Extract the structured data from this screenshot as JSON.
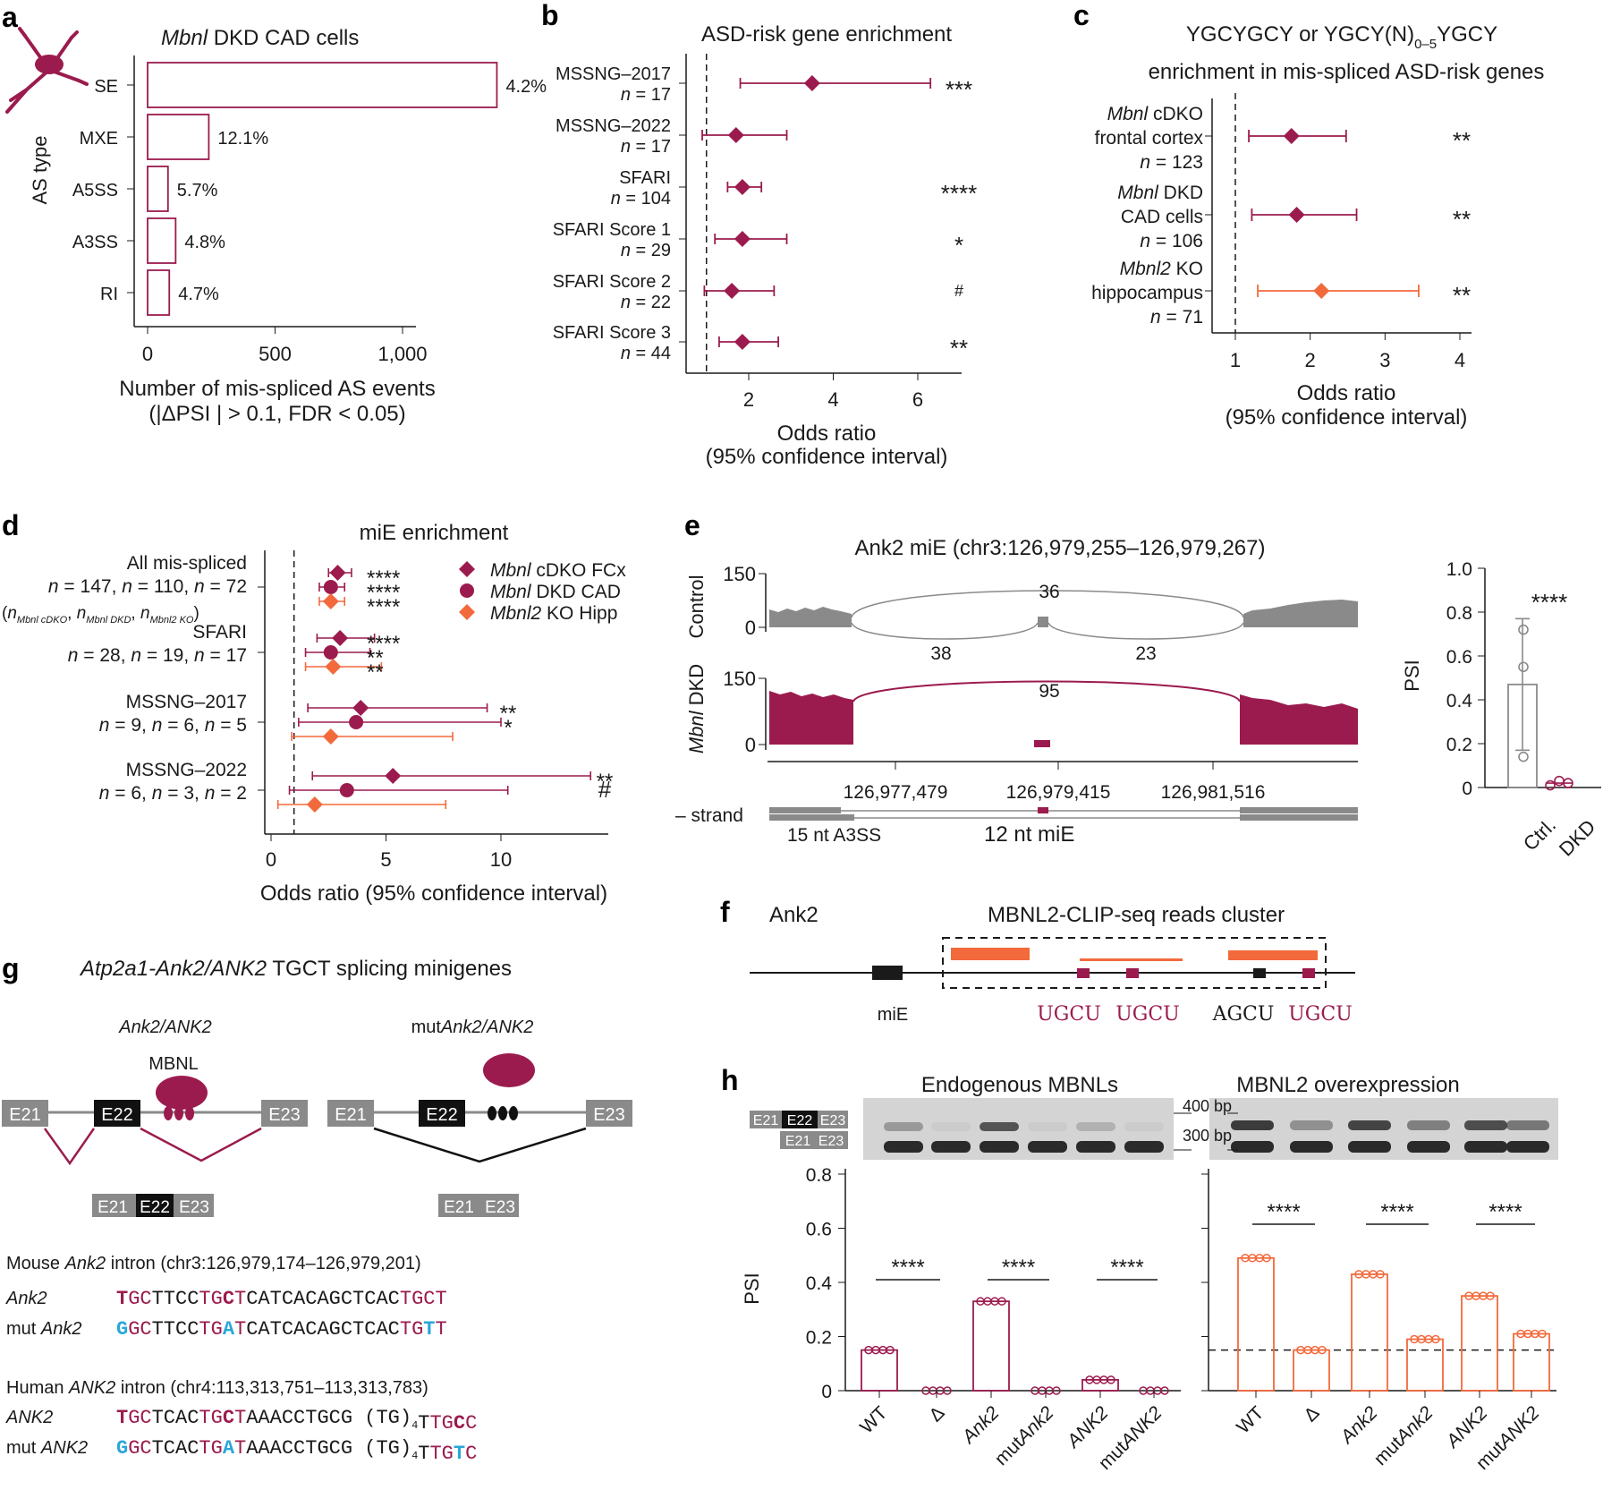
{
  "colors": {
    "maroon": "#9b1b4e",
    "orange": "#f26a3c",
    "grey": "#8a8a8a",
    "black": "#1a1a1a",
    "cyan": "#29a7d9"
  },
  "panel_a": {
    "letter": "a",
    "title_italic": "Mbnl",
    "title_rest": " DKD CAD cells",
    "ylabel": "AS type",
    "xlabel1": "Number of mis-spliced AS events",
    "xlabel2": "(|ΔPSI | > 0.1, FDR < 0.05)",
    "icon": "neuron-icon"
  },
  "panel_b": {
    "letter": "b",
    "title": "ASD-risk gene enrichment",
    "xlabel1": "Odds ratio",
    "xlabel2": "(95% confidence interval)"
  },
  "panel_c": {
    "letter": "c",
    "title1": "YGCYGCY or YGCY(N)",
    "title1_sub": "0–5",
    "title1_end": "YGCY",
    "title2": "enrichment in mis-spliced ASD-risk genes",
    "xlabel1": "Odds ratio",
    "xlabel2": "(95% confidence interval)"
  },
  "panel_d": {
    "letter": "d",
    "title": "miE enrichment",
    "xlabel": "Odds ratio (95% confidence interval)",
    "legend": [
      {
        "italic": "Mbnl",
        "rest": " cDKO FCx",
        "marker": "diamond",
        "color": "#9b1b4e"
      },
      {
        "italic": "Mbnl",
        "rest": " DKD CAD",
        "marker": "circle",
        "color": "#9b1b4e"
      },
      {
        "italic": "Mbnl2",
        "rest": " KO Hipp",
        "marker": "diamond",
        "color": "#f26a3c"
      }
    ],
    "note_open": "(",
    "note_n": "n",
    "note_sub1": "Mbnl cDKO",
    "note_sub2": "Mbnl DKD",
    "note_sub3": "Mbnl2 KO",
    "note_comma": ",",
    "note_close": ")"
  },
  "panel_e": {
    "letter": "e",
    "title": "Ank2 miE (chr3:126,979,255–126,979,267)",
    "track1": "Control",
    "track2_italic": "Mbnl",
    "track2_rest": " DKD",
    "ytick_hi": "150",
    "ytick_lo": "0",
    "junctions_control": [
      "36",
      "38",
      "23"
    ],
    "junction_dkd": "95",
    "coords": [
      "126,977,479",
      "126,979,415",
      "126,981,516"
    ],
    "strand": "– strand",
    "a3ss": "15 nt A3SS",
    "mie": "12 nt miE",
    "psi_ylabel": "PSI",
    "psi_ticks": [
      "1.0",
      "0.8",
      "0.6",
      "0.4",
      "0.2",
      "0"
    ],
    "psi_cats": [
      "Ctrl.",
      "DKD"
    ],
    "psi_sig": "****",
    "psi_values": {
      "ctrl_mean": 0.47,
      "ctrl_err": [
        0.17,
        0.77
      ],
      "ctrl_points": [
        0.72,
        0.55,
        0.14
      ],
      "dkd_points": [
        0.01,
        0.03,
        0.02
      ]
    }
  },
  "panel_f": {
    "letter": "f",
    "gene": "Ank2",
    "title": "MBNL2-CLIP-seq reads cluster",
    "mie": "miE",
    "motifs": [
      "UGCU",
      "UGCU",
      "AGCU",
      "UGCU"
    ]
  },
  "panel_g": {
    "letter": "g",
    "title_italic": "Atp2a1-Ank2/ANK2",
    "title_rest": " TGCT splicing minigenes",
    "construct1": "Ank2/ANK2",
    "construct2_pre": "mut",
    "construct2": "Ank2/ANK2",
    "mbnl": "MBNL",
    "exons": [
      "E21",
      "E22",
      "E23"
    ],
    "mouse_title_pre": "Mouse ",
    "mouse_title_it": "Ank2",
    "mouse_title_post": " intron (chr3:126,979,174–126,979,201)",
    "human_title_pre": "Human ",
    "human_title_it": "ANK2",
    "human_title_post": " intron (chr4:113,313,751–113,313,783)",
    "rows": [
      {
        "label_pre": "",
        "label_it": "Ank2",
        "segs": [
          [
            "T",
            "mB"
          ],
          [
            "GC",
            "m"
          ],
          [
            "TTCC",
            "k"
          ],
          [
            "TG",
            "m"
          ],
          [
            "C",
            "mB"
          ],
          [
            "T",
            "m"
          ],
          [
            "CATCACAGCTCAC",
            "k"
          ],
          [
            "TGCT",
            "m"
          ]
        ]
      },
      {
        "label_pre": "mut ",
        "label_it": "Ank2",
        "segs": [
          [
            "G",
            "cB"
          ],
          [
            "GC",
            "m"
          ],
          [
            "TTCC",
            "k"
          ],
          [
            "TG",
            "m"
          ],
          [
            "A",
            "cB"
          ],
          [
            "T",
            "m"
          ],
          [
            "CATCACAGCTCAC",
            "k"
          ],
          [
            "TG",
            "m"
          ],
          [
            "T",
            "cB"
          ],
          [
            "T",
            "m"
          ]
        ]
      },
      {
        "label_pre": "",
        "label_it": "ANK2",
        "segs": [
          [
            "T",
            "mB"
          ],
          [
            "GC",
            "m"
          ],
          [
            "TCAC",
            "k"
          ],
          [
            "TG",
            "m"
          ],
          [
            "C",
            "mB"
          ],
          [
            "T",
            "m"
          ],
          [
            "AAACCTGCG (TG)",
            "k"
          ],
          [
            "4",
            "s"
          ],
          [
            "T",
            "k"
          ],
          [
            "TG",
            "m"
          ],
          [
            "C",
            "mB"
          ],
          [
            "C",
            "m"
          ]
        ]
      },
      {
        "label_pre": "mut ",
        "label_it": "ANK2",
        "segs": [
          [
            "G",
            "cB"
          ],
          [
            "GC",
            "m"
          ],
          [
            "TCAC",
            "k"
          ],
          [
            "TG",
            "m"
          ],
          [
            "A",
            "cB"
          ],
          [
            "T",
            "m"
          ],
          [
            "AAACCTGCG (TG)",
            "k"
          ],
          [
            "4",
            "s"
          ],
          [
            "T",
            "k"
          ],
          [
            "TG",
            "m"
          ],
          [
            "T",
            "cB"
          ],
          [
            "C",
            "m"
          ]
        ]
      }
    ]
  },
  "panel_h": {
    "letter": "h",
    "title_left": "Endogenous MBNLs",
    "title_right": "MBNL2 overexpression",
    "bp400": "400 bp",
    "bp300": "300 bp",
    "ylabel": "PSI",
    "categories": [
      "WT",
      "Δ",
      "Ank2",
      "mutAnk2",
      "ANK2",
      "mutANK2"
    ],
    "sig": "****"
  },
  "chart_data": [
    {
      "type": "bar",
      "title": "Mbnl DKD CAD cells",
      "orientation": "horizontal",
      "categories": [
        "SE",
        "MXE",
        "A5SS",
        "A3SS",
        "RI"
      ],
      "values": [
        1370,
        240,
        80,
        110,
        85
      ],
      "labels": [
        "4.2%",
        "12.1%",
        "5.7%",
        "4.8%",
        "4.7%"
      ],
      "xlabel": "Number of mis-spliced AS events (|ΔPSI | > 0.1, FDR < 0.05)",
      "ylabel": "AS type",
      "xlim": [
        0,
        1450
      ],
      "xticks": [
        0,
        500,
        1000
      ],
      "xticklabels": [
        "0",
        "500",
        "1,000"
      ]
    },
    {
      "type": "scatter",
      "title": "ASD-risk gene enrichment",
      "categories": [
        "MSSNG–2017",
        "MSSNG–2022",
        "SFARI",
        "SFARI Score 1",
        "SFARI Score 2",
        "SFARI Score 3"
      ],
      "n": [
        "n = 17",
        "n = 17",
        "n = 104",
        "n = 29",
        "n = 22",
        "n = 44"
      ],
      "or": [
        3.5,
        1.7,
        1.85,
        1.85,
        1.6,
        1.85
      ],
      "ci": [
        [
          1.8,
          6.3
        ],
        [
          0.9,
          2.9
        ],
        [
          1.5,
          2.3
        ],
        [
          1.2,
          2.9
        ],
        [
          0.95,
          2.6
        ],
        [
          1.3,
          2.7
        ]
      ],
      "sig": [
        "***",
        "",
        "****",
        "*",
        "#",
        "**"
      ],
      "xlim": [
        0.3,
        7.2
      ],
      "xticks": [
        2,
        4,
        6
      ],
      "ref": 1,
      "xlabel": "Odds ratio (95% confidence interval)"
    },
    {
      "type": "scatter",
      "title": "YGCYGCY or YGCY(N)0–5YGCY enrichment in mis-spliced ASD-risk genes",
      "categories": [
        "Mbnl cDKO frontal cortex",
        "Mbnl DKD CAD cells",
        "Mbnl2 KO hippocampus"
      ],
      "n": [
        "n = 123",
        "n = 106",
        "n = 71"
      ],
      "or": [
        1.75,
        1.82,
        2.15
      ],
      "ci": [
        [
          1.18,
          2.48
        ],
        [
          1.22,
          2.62
        ],
        [
          1.3,
          3.45
        ]
      ],
      "colors": [
        "#9b1b4e",
        "#9b1b4e",
        "#f26a3c"
      ],
      "sig": [
        "**",
        "**",
        "**"
      ],
      "xlim": [
        0.65,
        4.15
      ],
      "xticks": [
        1,
        2,
        3,
        4
      ],
      "ref": 1,
      "xlabel": "Odds ratio (95% confidence interval)"
    },
    {
      "type": "scatter",
      "title": "miE enrichment",
      "groups": [
        "All mis-spliced",
        "SFARI",
        "MSSNG–2017",
        "MSSNG–2022"
      ],
      "group_n": [
        "n = 147, n = 110, n = 72",
        "n = 28, n = 19, n = 17",
        "n = 9, n = 6, n = 5",
        "n = 6, n = 3, n = 2"
      ],
      "series": [
        {
          "name": "Mbnl cDKO FCx",
          "marker": "diamond",
          "color": "#9b1b4e",
          "or": [
            2.9,
            3.0,
            3.9,
            5.3
          ],
          "ci": [
            [
              2.5,
              3.5
            ],
            [
              2.0,
              4.5
            ],
            [
              1.6,
              9.4
            ],
            [
              1.8,
              13.9
            ]
          ],
          "sig": [
            "****",
            "****",
            "**",
            "**"
          ]
        },
        {
          "name": "Mbnl DKD CAD",
          "marker": "circle",
          "color": "#9b1b4e",
          "or": [
            2.6,
            2.6,
            3.7,
            3.3
          ],
          "ci": [
            [
              2.1,
              3.2
            ],
            [
              1.5,
              4.3
            ],
            [
              1.2,
              10.0
            ],
            [
              0.8,
              10.3
            ]
          ],
          "sig": [
            "****",
            "**",
            "*",
            "#"
          ]
        },
        {
          "name": "Mbnl2 KO Hipp",
          "marker": "diamond",
          "color": "#f26a3c",
          "or": [
            2.6,
            2.7,
            2.6,
            1.9
          ],
          "ci": [
            [
              2.1,
              3.2
            ],
            [
              1.5,
              4.8
            ],
            [
              0.9,
              7.9
            ],
            [
              0.3,
              7.6
            ]
          ],
          "sig": [
            "****",
            "**",
            "",
            ""
          ]
        }
      ],
      "xlim": [
        -0.5,
        14.5
      ],
      "xticks": [
        0,
        5,
        10
      ],
      "ref": 1,
      "xlabel": "Odds ratio (95% confidence interval)"
    },
    {
      "type": "bar",
      "title": "Endogenous MBNLs",
      "categories": [
        "WT",
        "Δ",
        "Ank2",
        "mutAnk2",
        "ANK2",
        "mutANK2"
      ],
      "values": [
        0.15,
        0.0,
        0.33,
        0.0,
        0.04,
        0.0
      ],
      "ylim": [
        0,
        0.8
      ],
      "yticks": [
        0,
        0.2,
        0.4,
        0.6,
        0.8
      ],
      "ylabel": "PSI",
      "sig_pairs": [
        [
          "WT",
          "Δ",
          "****"
        ],
        [
          "Ank2",
          "mutAnk2",
          "****"
        ],
        [
          "ANK2",
          "mutANK2",
          "****"
        ]
      ],
      "color": "#9b1b4e"
    },
    {
      "type": "bar",
      "title": "MBNL2 overexpression",
      "categories": [
        "WT",
        "Δ",
        "Ank2",
        "mutAnk2",
        "ANK2",
        "mutANK2"
      ],
      "values": [
        0.49,
        0.15,
        0.43,
        0.19,
        0.35,
        0.21
      ],
      "ylim": [
        0,
        0.8
      ],
      "baseline": 0.15,
      "ylabel": "PSI",
      "sig_pairs": [
        [
          "WT",
          "Δ",
          "****"
        ],
        [
          "Ank2",
          "mutAnk2",
          "****"
        ],
        [
          "ANK2",
          "mutANK2",
          "****"
        ]
      ],
      "color": "#f26a3c"
    }
  ]
}
